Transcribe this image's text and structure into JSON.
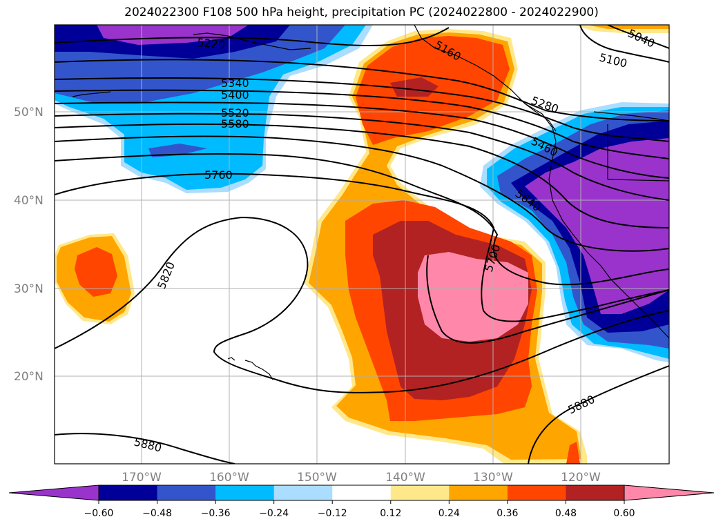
{
  "title": "2024022300 F108 500 hPa height, precipitation PC (2024022800 - 2024022900)",
  "lat_labels": [
    "50°N",
    "40°N",
    "30°N",
    "20°N"
  ],
  "lon_labels": [
    "170°W",
    "160°W",
    "150°W",
    "140°W",
    "130°W",
    "120°W"
  ],
  "contour_labels": [
    "5220",
    "5340",
    "5400",
    "5520",
    "5580",
    "5760",
    "5820",
    "5880",
    "5880",
    "5700",
    "5640",
    "5460",
    "5280",
    "5100",
    "5040",
    "5160"
  ],
  "colorbar": {
    "ticks": [
      "−0.60",
      "−0.48",
      "−0.36",
      "−0.24",
      "−0.12",
      "0.12",
      "0.24",
      "0.36",
      "0.48",
      "0.60"
    ],
    "colors": [
      "#9933cc",
      "#000099",
      "#3355cc",
      "#00bbff",
      "#aaddff",
      "#ffffff",
      "#ffe88a",
      "#ffa500",
      "#ff4500",
      "#b22222",
      "#ff88aa"
    ]
  }
}
